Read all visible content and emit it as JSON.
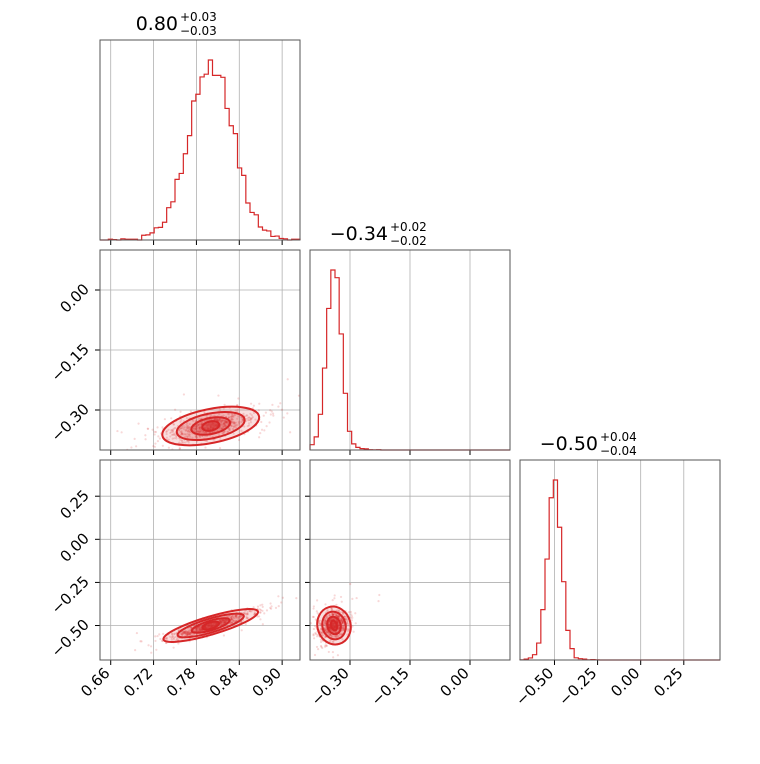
{
  "chart_data": {
    "type": "corner",
    "color": "#d62728",
    "parameters": [
      {
        "median": "0.80",
        "plus": "+0.03",
        "minus": "−0.03",
        "mu": 0.8,
        "sigma": 0.03,
        "range": [
          0.645,
          0.925
        ],
        "ticks": [
          0.66,
          0.72,
          0.78,
          0.84,
          0.9
        ],
        "tick_labels": [
          "0.66",
          "0.72",
          "0.78",
          "0.84",
          "0.90"
        ]
      },
      {
        "median": "−0.34",
        "plus": "+0.02",
        "minus": "−0.02",
        "mu": -0.34,
        "sigma": 0.018,
        "range": [
          -0.4,
          0.1
        ],
        "ticks": [
          -0.3,
          -0.15,
          0.0
        ],
        "tick_labels": [
          "−0.30",
          "−0.15",
          "0.00"
        ]
      },
      {
        "median": "−0.50",
        "plus": "+0.04",
        "minus": "−0.04",
        "mu": -0.5,
        "sigma": 0.04,
        "range": [
          -0.7,
          0.46
        ],
        "ticks": [
          -0.5,
          -0.25,
          0.0,
          0.25
        ],
        "tick_labels": [
          "−0.50",
          "−0.25",
          "0.00",
          "0.25"
        ]
      }
    ],
    "title": "",
    "grid": true
  }
}
